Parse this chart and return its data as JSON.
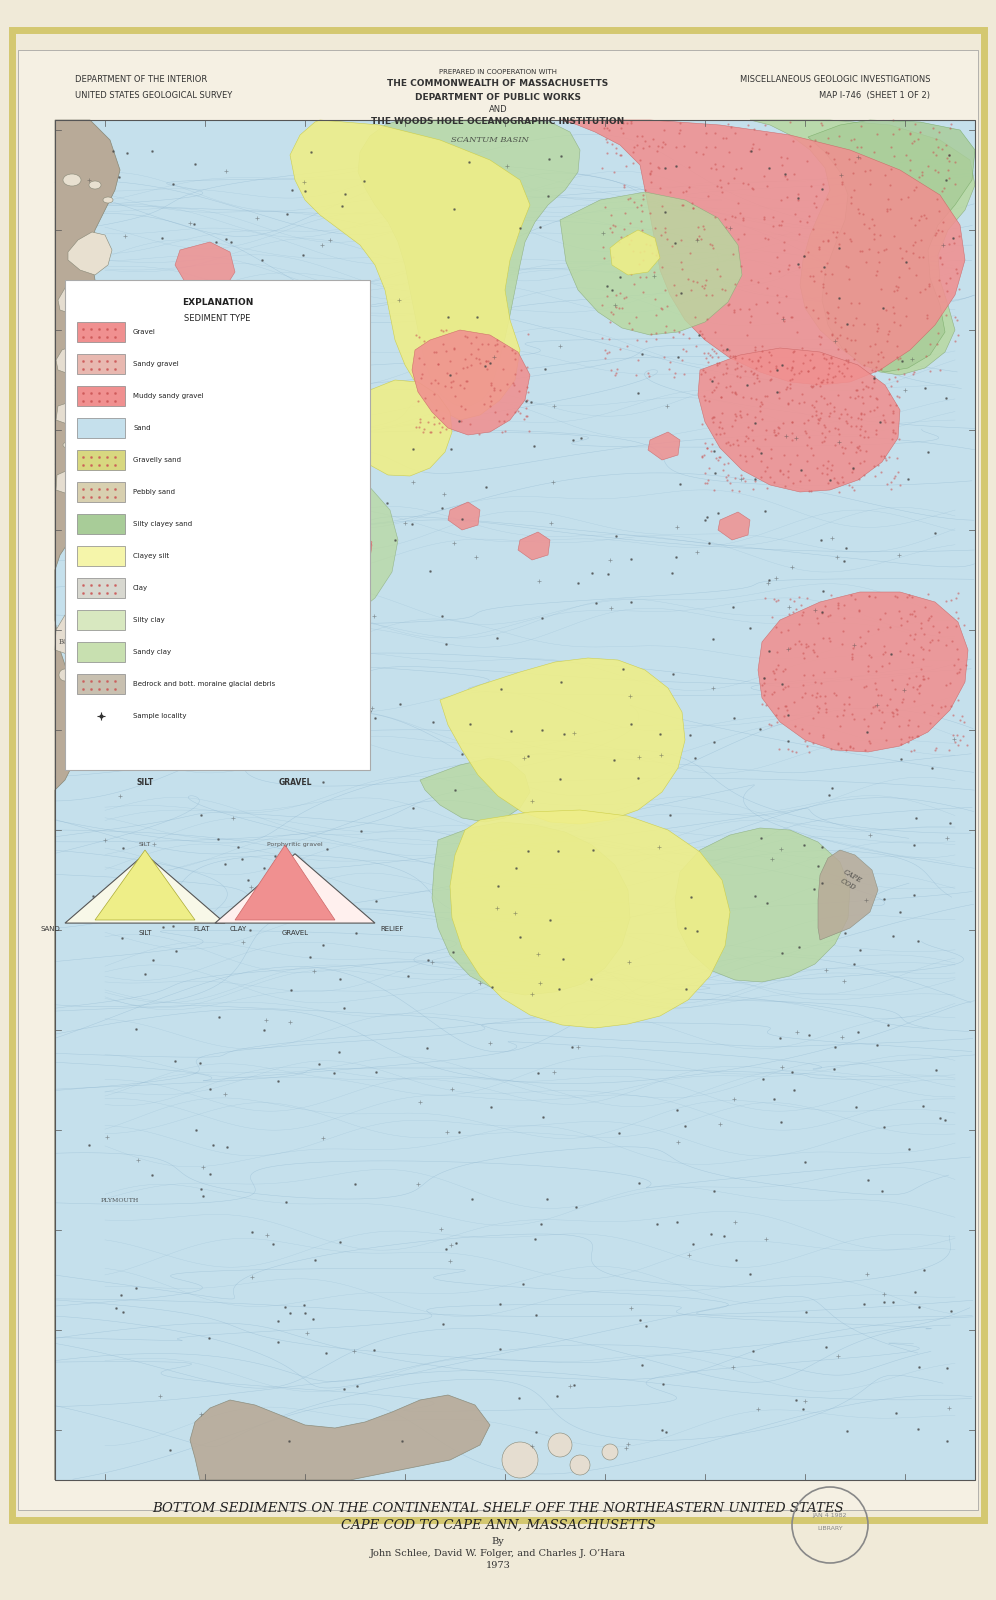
{
  "background_color": "#f0ead8",
  "paper_color": "#f5f0e3",
  "title_main": "BOTTOM SEDIMENTS ON THE CONTINENTAL SHELF OFF THE NORTHEASTERN UNITED STATES",
  "title_sub": "CAPE COD TO CAPE ANN, MASSACHUSETTS",
  "title_by": "By",
  "title_authors": "John Schlee, David W. Folger, and Charles J. O’Hara",
  "title_year": "1973",
  "header_left_line1": "DEPARTMENT OF THE INTERIOR",
  "header_left_line2": "UNITED STATES GEOLOGICAL SURVEY",
  "header_center_line0": "PREPARED IN COOPERATION WITH",
  "header_center_line1": "THE COMMONWEALTH OF MASSACHUSETTS",
  "header_center_line2": "DEPARTMENT OF PUBLIC WORKS",
  "header_center_line3": "AND",
  "header_center_line4": "THE WOODS HOLE OCEANOGRAPHIC INSTITUTION",
  "header_right_line1": "MISCELLANEOUS GEOLOGIC INVESTIGATIONS",
  "header_right_line2": "MAP I-746  (SHEET 1 OF 2)",
  "ocean_color": "#c5e0ec",
  "land_color": "#b8aa98",
  "land_dark_color": "#a09080",
  "gravel_color": "#f09090",
  "sandy_gravel_color": "#e8b8b0",
  "sand_color": "#eeee88",
  "gravelly_sand_color": "#d8d880",
  "silty_clay_color": "#a8cc98",
  "light_green_color": "#b8d8a0",
  "contour_color": "#88b8cc",
  "legend_items": [
    {
      "label": "Gravel",
      "color": "#f09090",
      "pattern": "dots"
    },
    {
      "label": "Sandy gravel",
      "color": "#e8b8b0",
      "pattern": "dots"
    },
    {
      "label": "Muddy sandy gravel",
      "color": "#f09090",
      "pattern": "dots"
    },
    {
      "label": "Sand",
      "color": "#c5e0ec",
      "pattern": "none"
    },
    {
      "label": "Gravelly sand",
      "color": "#e0e080",
      "pattern": "dots"
    },
    {
      "label": "Pebbly sand",
      "color": "#d8d0b0",
      "pattern": "dots"
    },
    {
      "label": "Silty clayey sand",
      "color": "#b8cc98",
      "pattern": "none"
    },
    {
      "label": "Clayey silt",
      "color": "#f5f5aa",
      "pattern": "none"
    },
    {
      "label": "Clay",
      "color": "#d8d8d0",
      "pattern": "dots"
    },
    {
      "label": "Silty clay",
      "color": "#d8e8c0",
      "pattern": "none"
    },
    {
      "label": "Sandy clay",
      "color": "#c8e0b0",
      "pattern": "none"
    },
    {
      "label": "Bedrock and bot. moraine glacial debris",
      "color": "#d0c8b8",
      "pattern": "dots"
    },
    {
      "label": "Sample locality",
      "color": "#333333",
      "pattern": "dot"
    }
  ]
}
